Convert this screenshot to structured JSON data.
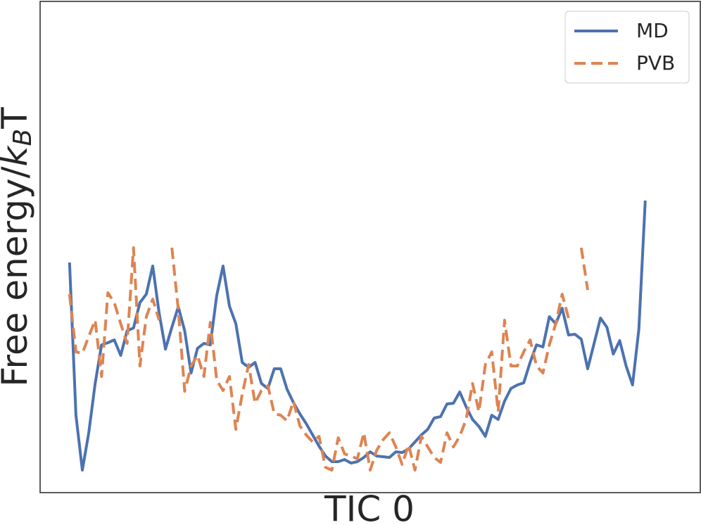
{
  "chart_data": {
    "type": "line",
    "xlabel": "TIC 0",
    "ylabel": [
      "Free energy/",
      "k",
      "B",
      "T"
    ],
    "legend": "upper right",
    "grid": false,
    "xlim": [
      -4.6,
      98.6
    ],
    "ylim": [
      0,
      69.8
    ],
    "x": [
      0,
      1,
      2,
      3,
      4,
      5,
      6,
      7,
      8,
      9,
      10,
      11,
      12,
      13,
      14,
      15,
      16,
      17,
      18,
      19,
      20,
      21,
      22,
      23,
      24,
      25,
      26,
      27,
      28,
      29,
      30,
      31,
      32,
      33,
      34,
      35,
      36,
      37,
      38,
      39,
      40,
      41,
      42,
      43,
      44,
      45,
      46,
      47,
      48,
      49,
      50,
      51,
      52,
      53,
      54,
      55,
      56,
      57,
      58,
      59,
      60,
      61,
      62,
      63,
      64,
      65,
      66,
      67,
      68,
      69,
      70,
      71,
      72,
      73,
      74,
      75,
      76,
      77,
      78,
      79,
      80,
      81,
      82,
      83,
      84,
      85,
      86,
      87,
      88,
      89,
      90
    ],
    "series": [
      {
        "name": "MD",
        "color": "#4c72b0",
        "dash": "solid",
        "values": [
          32.7,
          11.0,
          3.2,
          8.5,
          15.5,
          21.0,
          21.3,
          21.7,
          19.5,
          23.0,
          23.4,
          27.0,
          28.2,
          32.2,
          25.5,
          20.4,
          23.5,
          26.4,
          23.0,
          17.0,
          20.5,
          21.2,
          21.0,
          28.0,
          32.2,
          26.5,
          24.0,
          18.5,
          17.8,
          18.5,
          15.5,
          14.8,
          17.6,
          17.6,
          14.7,
          12.8,
          11.2,
          9.8,
          8.2,
          6.6,
          5.2,
          4.4,
          4.4,
          4.7,
          4.2,
          4.4,
          5.0,
          5.8,
          5.2,
          5.1,
          5.0,
          5.8,
          5.7,
          6.2,
          7.2,
          8.2,
          9.0,
          10.6,
          10.8,
          12.6,
          12.7,
          14.3,
          12.2,
          10.4,
          9.4,
          8.0,
          11.0,
          10.4,
          13.0,
          14.8,
          15.3,
          15.6,
          18.5,
          21.0,
          20.7,
          25.0,
          24.0,
          26.2,
          22.4,
          22.5,
          21.8,
          17.6,
          21.2,
          24.8,
          23.5,
          19.7,
          21.6,
          18.0,
          15.3,
          23.2,
          41.5
        ]
      },
      {
        "name": "PVB",
        "color": "#dd8452",
        "dash": "dashed",
        "values": [
          28.2,
          20.0,
          19.8,
          22.2,
          24.5,
          16.5,
          28.4,
          27.0,
          24.0,
          21.2,
          34.8,
          18.0,
          25.0,
          27.5,
          24.5,
          null,
          34.8,
          26.0,
          14.4,
          18.0,
          19.5,
          16.5,
          24.2,
          16.0,
          14.5,
          16.5,
          9.0,
          14.0,
          18.2,
          12.7,
          14.5,
          15.2,
          11.2,
          11.0,
          10.2,
          13.0,
          9.5,
          8.2,
          7.2,
          8.0,
          3.6,
          3.2,
          7.8,
          5.5,
          5.2,
          4.8,
          8.5,
          3.2,
          6.0,
          7.5,
          8.5,
          6.5,
          4.0,
          6.8,
          3.2,
          8.0,
          6.5,
          5.0,
          4.3,
          8.5,
          6.5,
          8.0,
          10.4,
          15.5,
          11.5,
          18.2,
          20.0,
          11.5,
          24.5,
          18.0,
          18.0,
          20.0,
          21.7,
          18.0,
          17.0,
          21.0,
          24.0,
          28.2,
          24.8,
          null,
          34.8,
          28.8,
          null,
          null,
          null,
          null,
          null,
          null,
          null,
          null,
          null
        ]
      }
    ]
  }
}
